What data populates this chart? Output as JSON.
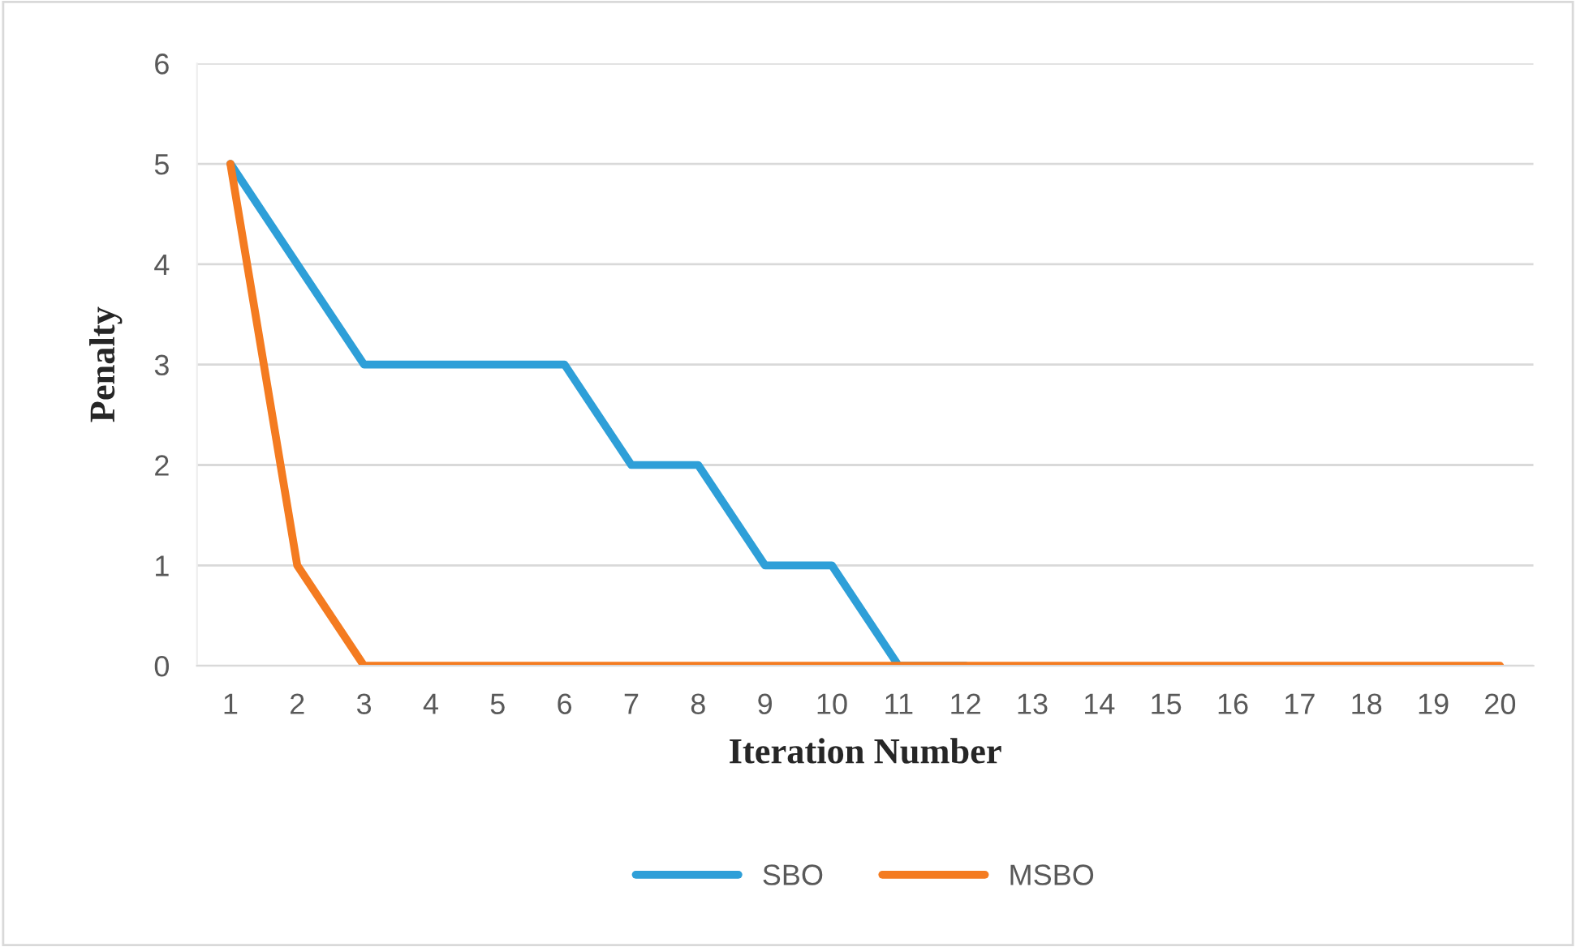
{
  "chart_data": {
    "type": "line",
    "xlabel": "Iteration Number",
    "ylabel": "Penalty",
    "categories": [
      "1",
      "2",
      "3",
      "4",
      "5",
      "6",
      "7",
      "8",
      "9",
      "10",
      "11",
      "12",
      "13",
      "14",
      "15",
      "16",
      "17",
      "18",
      "19",
      "20"
    ],
    "series": [
      {
        "name": "SBO",
        "color": "#2e9fd8",
        "values": [
          5,
          4,
          3,
          3,
          3,
          3,
          2,
          2,
          1,
          1,
          0,
          0,
          null,
          null,
          null,
          null,
          null,
          null,
          null,
          null
        ]
      },
      {
        "name": "MSBO",
        "color": "#f47b20",
        "values": [
          5,
          1,
          0,
          0,
          0,
          0,
          0,
          0,
          0,
          0,
          0,
          0,
          0,
          0,
          0,
          0,
          0,
          0,
          0,
          0
        ]
      }
    ],
    "ylim": [
      0,
      6
    ],
    "yticks": [
      0,
      1,
      2,
      3,
      4,
      5,
      6
    ],
    "grid": "y",
    "legend": "bottom",
    "marker": "none",
    "line_style": "solid"
  }
}
